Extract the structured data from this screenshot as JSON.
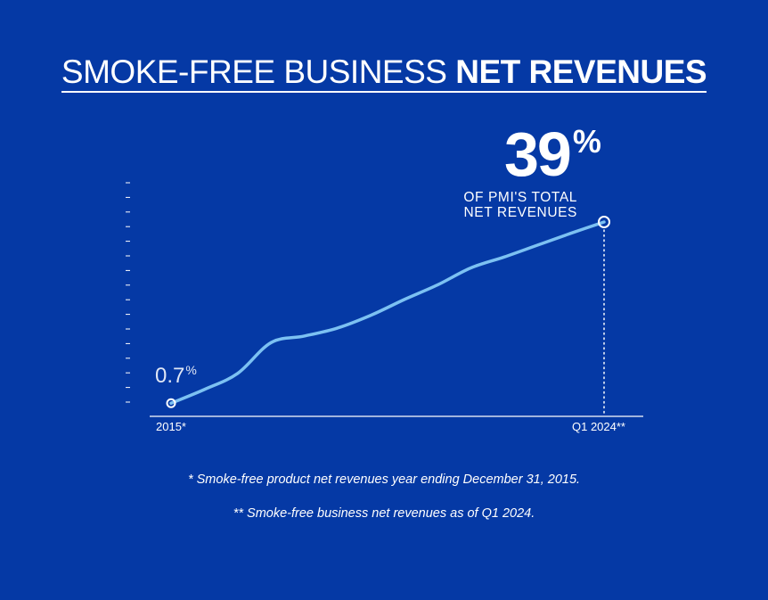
{
  "title": {
    "light": "SMOKE-FREE BUSINESS",
    "bold": "NET REVENUES"
  },
  "chart_data": {
    "type": "line",
    "title": "SMOKE-FREE BUSINESS NET REVENUES",
    "x_labels": [
      "2015*",
      "Q1 2024**"
    ],
    "start": {
      "label": "2015*",
      "value": 0.7,
      "value_text": "0.7",
      "unit": "%"
    },
    "end": {
      "label": "Q1 2024**",
      "value": 39,
      "value_text": "39",
      "unit": "%",
      "caption_lines": [
        "OF PMI'S TOTAL",
        "NET REVENUES"
      ]
    },
    "series": [
      {
        "values": [
          0.7,
          3.6,
          7.0,
          13.5,
          14.9,
          16.6,
          19.3,
          22.6,
          25.7,
          29.3,
          31.6,
          34.1,
          36.6,
          39
        ]
      }
    ],
    "ylim": [
      0,
      39
    ],
    "grid": false,
    "legend": "none"
  },
  "colors": {
    "background": "#0539a5",
    "line": "#7cc1f2",
    "text": "#ffffff"
  },
  "footnotes": [
    "* Smoke-free product net revenues year ending December 31, 2015.",
    "** Smoke-free business net revenues as of Q1 2024."
  ]
}
